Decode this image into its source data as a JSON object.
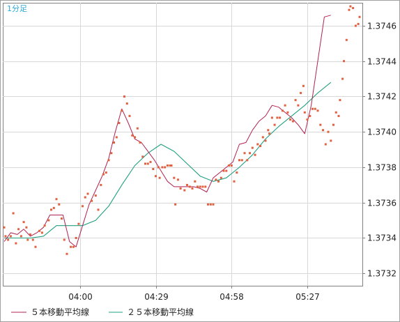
{
  "chart_data": {
    "type": "scatter",
    "interval_label": "1分足",
    "y_ticks": [
      "1.3746",
      "1.3744",
      "1.3742",
      "1.3740",
      "1.3738",
      "1.3736",
      "1.3734",
      "1.3732"
    ],
    "x_ticks": [
      "04:00",
      "04:29",
      "04:58",
      "05:27"
    ],
    "ylim": [
      1.37313,
      1.37473
    ],
    "grid": true,
    "legend_position": "bottom-left",
    "colors": {
      "price_points": "#e06040",
      "ma5": "#b02050",
      "ma25": "#20a080",
      "grid": "#d8d8d8",
      "axis": "#808080",
      "interval_label": "#2aa8d8"
    },
    "series": [
      {
        "name": "５本移動平均線",
        "kind": "line",
        "values": [
          [
            0,
            1.37338
          ],
          [
            5,
            1.37343
          ],
          [
            10,
            1.37342
          ],
          [
            15,
            1.37345
          ],
          [
            20,
            1.37341
          ],
          [
            25,
            1.37343
          ],
          [
            30,
            1.37346
          ],
          [
            35,
            1.37353
          ],
          [
            40,
            1.37353
          ],
          [
            45,
            1.37353
          ],
          [
            50,
            1.37338
          ],
          [
            55,
            1.37335
          ],
          [
            60,
            1.37347
          ],
          [
            65,
            1.37359
          ],
          [
            70,
            1.37367
          ],
          [
            75,
            1.37375
          ],
          [
            80,
            1.37385
          ],
          [
            85,
            1.374
          ],
          [
            90,
            1.37413
          ],
          [
            95,
            1.37405
          ],
          [
            100,
            1.37396
          ],
          [
            105,
            1.37394
          ],
          [
            110,
            1.37389
          ],
          [
            115,
            1.37384
          ],
          [
            120,
            1.37378
          ],
          [
            125,
            1.37372
          ],
          [
            130,
            1.37369
          ],
          [
            135,
            1.37369
          ],
          [
            140,
            1.37369
          ],
          [
            145,
            1.37369
          ],
          [
            150,
            1.37368
          ],
          [
            155,
            1.37366
          ],
          [
            160,
            1.37374
          ],
          [
            165,
            1.37377
          ],
          [
            170,
            1.3738
          ],
          [
            175,
            1.37383
          ],
          [
            180,
            1.37393
          ],
          [
            185,
            1.37394
          ],
          [
            190,
            1.37401
          ],
          [
            195,
            1.37406
          ],
          [
            200,
            1.37409
          ],
          [
            205,
            1.37415
          ],
          [
            210,
            1.37414
          ],
          [
            215,
            1.37411
          ],
          [
            220,
            1.37408
          ],
          [
            225,
            1.37404
          ],
          [
            230,
            1.37399
          ],
          [
            235,
            1.37415
          ],
          [
            240,
            1.3744
          ],
          [
            245,
            1.37465
          ],
          [
            250,
            1.37466
          ]
        ]
      },
      {
        "name": "２５本移動平均線",
        "kind": "line",
        "values": [
          [
            0,
            1.3734
          ],
          [
            10,
            1.3734
          ],
          [
            20,
            1.3734
          ],
          [
            30,
            1.37341
          ],
          [
            40,
            1.37347
          ],
          [
            50,
            1.37347
          ],
          [
            60,
            1.37347
          ],
          [
            70,
            1.3735
          ],
          [
            80,
            1.37358
          ],
          [
            90,
            1.3737
          ],
          [
            100,
            1.37381
          ],
          [
            110,
            1.37388
          ],
          [
            120,
            1.37393
          ],
          [
            130,
            1.37389
          ],
          [
            140,
            1.37382
          ],
          [
            150,
            1.37375
          ],
          [
            160,
            1.37372
          ],
          [
            170,
            1.37374
          ],
          [
            180,
            1.3738
          ],
          [
            190,
            1.37387
          ],
          [
            200,
            1.37396
          ],
          [
            210,
            1.37403
          ],
          [
            220,
            1.37409
          ],
          [
            230,
            1.37415
          ],
          [
            240,
            1.37422
          ],
          [
            250,
            1.37428
          ]
        ]
      },
      {
        "kind": "points",
        "values": [
          [
            0,
            1.37346
          ],
          [
            1,
            1.37341
          ],
          [
            3,
            1.37339
          ],
          [
            5,
            1.37341
          ],
          [
            7,
            1.37354
          ],
          [
            9,
            1.37337
          ],
          [
            11,
            1.37345
          ],
          [
            13,
            1.37341
          ],
          [
            15,
            1.37349
          ],
          [
            17,
            1.37346
          ],
          [
            18,
            1.37339
          ],
          [
            20,
            1.37342
          ],
          [
            22,
            1.37339
          ],
          [
            24,
            1.37335
          ],
          [
            27,
            1.37344
          ],
          [
            29,
            1.37343
          ],
          [
            31,
            1.37347
          ],
          [
            34,
            1.3735
          ],
          [
            36,
            1.37356
          ],
          [
            38,
            1.37357
          ],
          [
            40,
            1.37362
          ],
          [
            42,
            1.37359
          ],
          [
            44,
            1.37351
          ],
          [
            46,
            1.37339
          ],
          [
            48,
            1.37331
          ],
          [
            51,
            1.37335
          ],
          [
            53,
            1.37335
          ],
          [
            55,
            1.3734
          ],
          [
            57,
            1.37348
          ],
          [
            60,
            1.37358
          ],
          [
            62,
            1.37363
          ],
          [
            64,
            1.37365
          ],
          [
            67,
            1.37361
          ],
          [
            70,
            1.37364
          ],
          [
            72,
            1.37356
          ],
          [
            74,
            1.3737
          ],
          [
            76,
            1.37376
          ],
          [
            78,
            1.37377
          ],
          [
            80,
            1.37384
          ],
          [
            82,
            1.37388
          ],
          [
            84,
            1.37394
          ],
          [
            86,
            1.37397
          ],
          [
            88,
            1.37405
          ],
          [
            90,
            1.37412
          ],
          [
            92,
            1.3742
          ],
          [
            94,
            1.37416
          ],
          [
            96,
            1.37409
          ],
          [
            98,
            1.37398
          ],
          [
            100,
            1.37397
          ],
          [
            102,
            1.37402
          ],
          [
            104,
            1.37394
          ],
          [
            106,
            1.37386
          ],
          [
            108,
            1.37382
          ],
          [
            110,
            1.37382
          ],
          [
            112,
            1.37383
          ],
          [
            114,
            1.37379
          ],
          [
            116,
            1.37375
          ],
          [
            118,
            1.3738
          ],
          [
            119,
            1.37374
          ],
          [
            121,
            1.3738
          ],
          [
            123,
            1.3738
          ],
          [
            125,
            1.37381
          ],
          [
            127,
            1.37381
          ],
          [
            128,
            1.37381
          ],
          [
            130,
            1.37374
          ],
          [
            131,
            1.37359
          ],
          [
            133,
            1.37373
          ],
          [
            135,
            1.37368
          ],
          [
            138,
            1.37367
          ],
          [
            140,
            1.3737
          ],
          [
            142,
            1.37369
          ],
          [
            144,
            1.37368
          ],
          [
            146,
            1.37372
          ],
          [
            148,
            1.37369
          ],
          [
            150,
            1.37369
          ],
          [
            152,
            1.37369
          ],
          [
            154,
            1.37369
          ],
          [
            156,
            1.37359
          ],
          [
            158,
            1.37359
          ],
          [
            160,
            1.37359
          ],
          [
            162,
            1.37373
          ],
          [
            164,
            1.37372
          ],
          [
            166,
            1.37374
          ],
          [
            168,
            1.37378
          ],
          [
            170,
            1.37378
          ],
          [
            172,
            1.37381
          ],
          [
            174,
            1.37381
          ],
          [
            176,
            1.37372
          ],
          [
            178,
            1.37377
          ],
          [
            180,
            1.37384
          ],
          [
            182,
            1.37384
          ],
          [
            184,
            1.37388
          ],
          [
            186,
            1.37384
          ],
          [
            188,
            1.37388
          ],
          [
            190,
            1.37391
          ],
          [
            192,
            1.37387
          ],
          [
            194,
            1.37393
          ],
          [
            196,
            1.37392
          ],
          [
            198,
            1.37397
          ],
          [
            200,
            1.37395
          ],
          [
            202,
            1.37401
          ],
          [
            203,
            1.37399
          ],
          [
            205,
            1.37408
          ],
          [
            207,
            1.37404
          ],
          [
            209,
            1.37408
          ],
          [
            211,
            1.37408
          ],
          [
            213,
            1.37412
          ],
          [
            215,
            1.37415
          ],
          [
            217,
            1.37411
          ],
          [
            219,
            1.37407
          ],
          [
            221,
            1.37406
          ],
          [
            223,
            1.37418
          ],
          [
            225,
            1.37415
          ],
          [
            227,
            1.37422
          ],
          [
            229,
            1.37426
          ],
          [
            230,
            1.37411
          ],
          [
            232,
            1.37407
          ],
          [
            234,
            1.37409
          ],
          [
            236,
            1.37413
          ],
          [
            238,
            1.37413
          ],
          [
            240,
            1.37412
          ],
          [
            242,
            1.37404
          ],
          [
            244,
            1.37401
          ],
          [
            246,
            1.37393
          ],
          [
            248,
            1.374
          ],
          [
            250,
            1.37395
          ],
          [
            252,
            1.37404
          ],
          [
            254,
            1.37411
          ],
          [
            256,
            1.37409
          ],
          [
            257,
            1.37418
          ],
          [
            259,
            1.3743
          ],
          [
            260,
            1.3744
          ],
          [
            262,
            1.37452
          ],
          [
            264,
            1.37469
          ],
          [
            265,
            1.37471
          ],
          [
            267,
            1.3747
          ],
          [
            269,
            1.3746
          ],
          [
            271,
            1.37461
          ],
          [
            272,
            1.37465
          ]
        ]
      }
    ]
  }
}
